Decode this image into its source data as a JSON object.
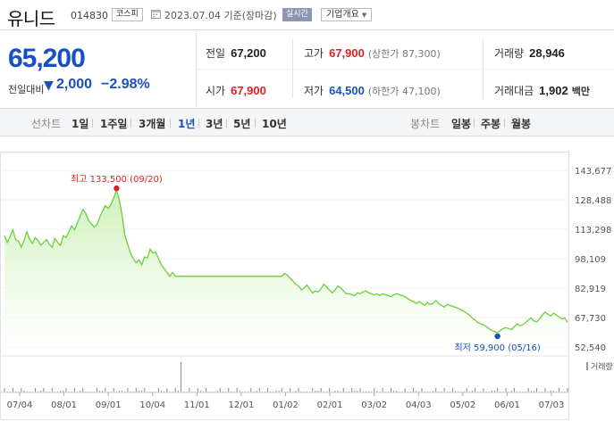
{
  "header": {
    "stock_name": "유니드",
    "stock_code": "014830",
    "market": "코스피",
    "date_text": "2023.07.04 기준(장마감)",
    "realtime_label": "실시간",
    "company_label": "기업개요"
  },
  "price": {
    "current": "65,200",
    "change_label": "전일대비",
    "change_arrow": "▼",
    "change_value": "2,000",
    "change_rate": "−2.98%"
  },
  "stats": {
    "prev_close_label": "전일",
    "prev_close": "67,200",
    "high_label": "고가",
    "high": "67,900",
    "upper_limit": "(상한가 87,300)",
    "volume_label": "거래량",
    "volume": "28,946",
    "open_label": "시가",
    "open": "67,900",
    "low_label": "저가",
    "low": "64,500",
    "lower_limit": "(하한가 47,100)",
    "amount_label": "거래대금",
    "amount": "1,902",
    "amount_unit": "백만"
  },
  "tabs": {
    "line_chart_label": "선차트",
    "periods": [
      "1일",
      "1주일",
      "3개월",
      "1년",
      "3년",
      "5년",
      "10년"
    ],
    "active_period": "1년",
    "candle_label": "봉차트",
    "candle_periods": [
      "일봉",
      "주봉",
      "월봉"
    ]
  },
  "colors": {
    "up": "#e02020",
    "down": "#1a4fbf",
    "area_line": "#6ccf3a",
    "area_fill": "#c8f0b0"
  },
  "chart_data": {
    "type": "area",
    "y_ticks": [
      "143,677",
      "128,488",
      "113,298",
      "98,109",
      "82,919",
      "67,730",
      "52,540"
    ],
    "ylim": [
      52540,
      143677
    ],
    "x_ticks": [
      "07/04",
      "08/01",
      "09/01",
      "10/04",
      "11/01",
      "12/01",
      "01/02",
      "02/01",
      "03/02",
      "04/03",
      "05/02",
      "06/01",
      "07/03"
    ],
    "high_annotation": "최고 133,500 (09/20)",
    "low_annotation": "최저 59,900 (05/16)",
    "volume_label": "거래량",
    "series": [
      {
        "values": [
          110000,
          106500,
          109500,
          113000,
          108000,
          107000,
          104000,
          107500,
          112000,
          108000,
          106000,
          109000,
          107500,
          105000,
          106500,
          108000,
          105500,
          104000,
          108500,
          106500,
          105000,
          110000,
          109000,
          112000,
          115000,
          113000,
          116500,
          120000,
          123500,
          121500,
          118000,
          116000,
          114500,
          115500,
          119500,
          122500,
          125500,
          124000,
          126000,
          129500,
          133500,
          128500,
          120500,
          110000,
          105500,
          101000,
          98000,
          96000,
          97500,
          95000,
          99000,
          98500,
          103000,
          101000,
          101500,
          98000,
          95000,
          93000,
          91000,
          89000,
          91000,
          89000,
          89000,
          89000,
          89000,
          89000,
          89000,
          89000,
          89000,
          89000,
          89000,
          89000,
          89000,
          89000,
          89000,
          89000,
          89000,
          89000,
          89000,
          89000,
          89000,
          89000,
          89000,
          89000,
          89000,
          89000,
          89000,
          89000,
          89000,
          89000,
          89000,
          89000,
          89000,
          89000,
          89000,
          89000,
          89000,
          89000,
          89000,
          89000,
          90500,
          89500,
          88000,
          86500,
          85000,
          84000,
          82000,
          83000,
          84500,
          82500,
          80500,
          81500,
          81000,
          82500,
          85000,
          83500,
          82000,
          80500,
          82000,
          84000,
          83000,
          81500,
          80000,
          80000,
          79500,
          79000,
          80500,
          80000,
          81000,
          81500,
          80500,
          80000,
          79500,
          80000,
          79000,
          80000,
          79500,
          79000,
          78500,
          79500,
          80000,
          79500,
          79000,
          78500,
          77500,
          76500,
          76000,
          75000,
          76000,
          75000,
          74000,
          75500,
          74500,
          75000,
          76500,
          75000,
          74000,
          73000,
          74500,
          74000,
          73500,
          73000,
          72500,
          71500,
          71000,
          70000,
          69000,
          67500,
          66500,
          65000,
          64500,
          64000,
          63000,
          62000,
          61000,
          60500,
          59900,
          61000,
          62000,
          62500,
          62000,
          61500,
          63000,
          64500,
          63500,
          64000,
          65000,
          66500,
          67500,
          66000,
          65500,
          67000,
          69000,
          70500,
          69500,
          68500,
          70000,
          69000,
          68000,
          67000,
          67500,
          65200
        ]
      }
    ]
  }
}
